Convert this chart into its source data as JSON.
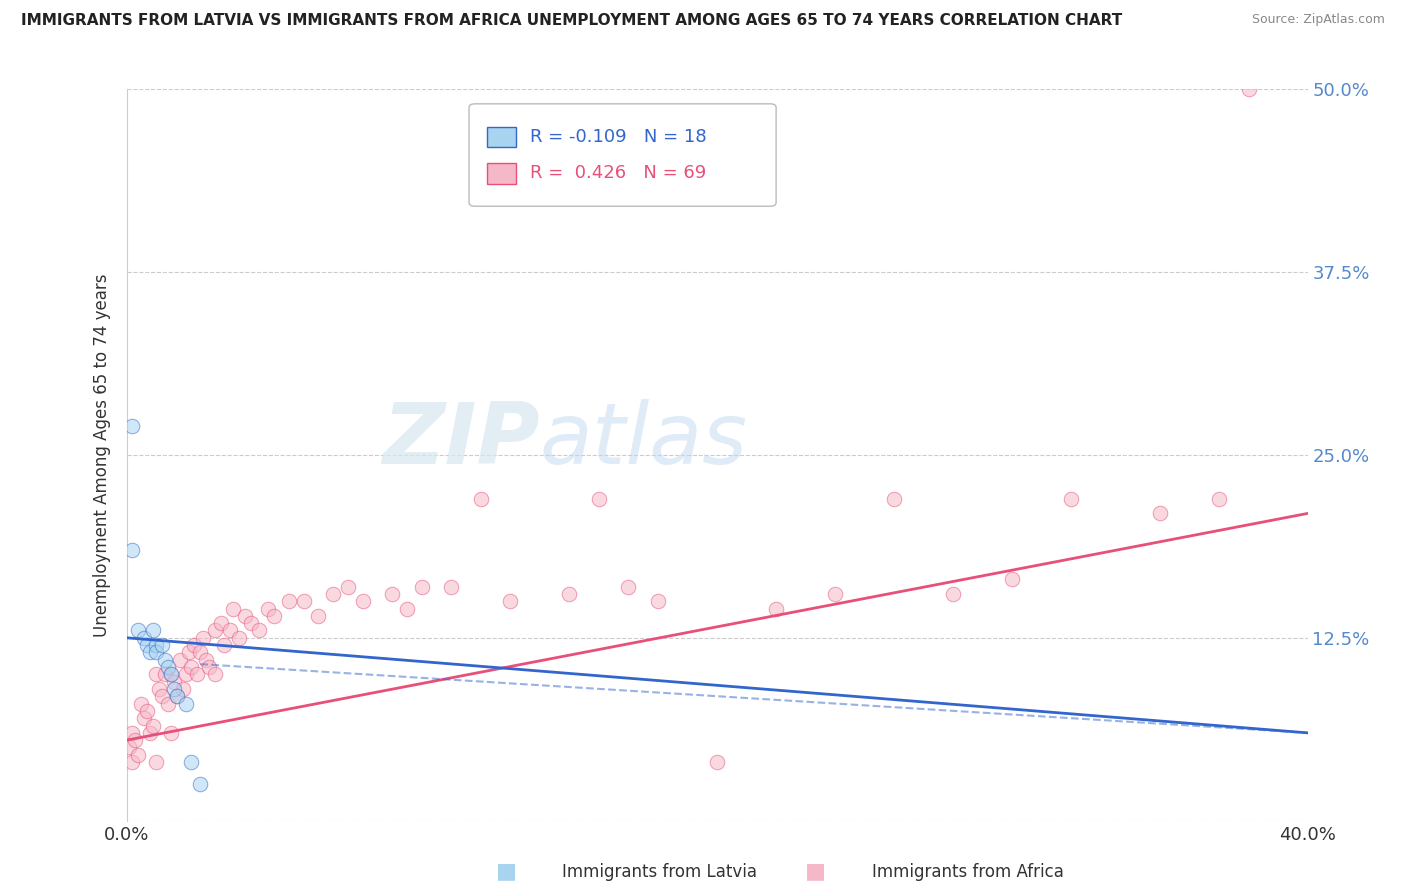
{
  "title": "IMMIGRANTS FROM LATVIA VS IMMIGRANTS FROM AFRICA UNEMPLOYMENT AMONG AGES 65 TO 74 YEARS CORRELATION CHART",
  "source": "Source: ZipAtlas.com",
  "ylabel": "Unemployment Among Ages 65 to 74 years",
  "legend_latvia": "Immigrants from Latvia",
  "legend_africa": "Immigrants from Africa",
  "R_latvia": -0.109,
  "N_latvia": 18,
  "R_africa": 0.426,
  "N_africa": 69,
  "xlim": [
    0.0,
    0.4
  ],
  "ylim": [
    0.0,
    0.5
  ],
  "yticks": [
    0.0,
    0.125,
    0.25,
    0.375,
    0.5
  ],
  "ytick_labels": [
    "",
    "12.5%",
    "25.0%",
    "37.5%",
    "50.0%"
  ],
  "color_latvia": "#a8d4f0",
  "color_africa": "#f5b8c8",
  "line_color_latvia": "#3366cc",
  "line_color_africa": "#e8507a",
  "background_color": "#ffffff",
  "latvia_x": [
    0.002,
    0.002,
    0.004,
    0.006,
    0.007,
    0.008,
    0.009,
    0.01,
    0.01,
    0.012,
    0.013,
    0.014,
    0.015,
    0.016,
    0.017,
    0.02,
    0.022,
    0.025
  ],
  "latvia_y": [
    0.27,
    0.185,
    0.13,
    0.125,
    0.12,
    0.115,
    0.13,
    0.12,
    0.115,
    0.12,
    0.11,
    0.105,
    0.1,
    0.09,
    0.085,
    0.08,
    0.04,
    0.025
  ],
  "africa_x": [
    0.001,
    0.002,
    0.002,
    0.003,
    0.004,
    0.005,
    0.006,
    0.007,
    0.008,
    0.009,
    0.01,
    0.01,
    0.011,
    0.012,
    0.013,
    0.014,
    0.015,
    0.015,
    0.016,
    0.017,
    0.018,
    0.019,
    0.02,
    0.021,
    0.022,
    0.023,
    0.024,
    0.025,
    0.026,
    0.027,
    0.028,
    0.03,
    0.03,
    0.032,
    0.033,
    0.035,
    0.036,
    0.038,
    0.04,
    0.042,
    0.045,
    0.048,
    0.05,
    0.055,
    0.06,
    0.065,
    0.07,
    0.075,
    0.08,
    0.09,
    0.095,
    0.1,
    0.11,
    0.12,
    0.13,
    0.15,
    0.16,
    0.17,
    0.18,
    0.2,
    0.22,
    0.24,
    0.26,
    0.28,
    0.3,
    0.32,
    0.35,
    0.37,
    0.38
  ],
  "africa_y": [
    0.05,
    0.06,
    0.04,
    0.055,
    0.045,
    0.08,
    0.07,
    0.075,
    0.06,
    0.065,
    0.1,
    0.04,
    0.09,
    0.085,
    0.1,
    0.08,
    0.1,
    0.06,
    0.095,
    0.085,
    0.11,
    0.09,
    0.1,
    0.115,
    0.105,
    0.12,
    0.1,
    0.115,
    0.125,
    0.11,
    0.105,
    0.13,
    0.1,
    0.135,
    0.12,
    0.13,
    0.145,
    0.125,
    0.14,
    0.135,
    0.13,
    0.145,
    0.14,
    0.15,
    0.15,
    0.14,
    0.155,
    0.16,
    0.15,
    0.155,
    0.145,
    0.16,
    0.16,
    0.22,
    0.15,
    0.155,
    0.22,
    0.16,
    0.15,
    0.04,
    0.145,
    0.155,
    0.22,
    0.155,
    0.165,
    0.22,
    0.21,
    0.22,
    0.5
  ],
  "africa_line_x0": 0.0,
  "africa_line_y0": 0.055,
  "africa_line_x1": 0.4,
  "africa_line_y1": 0.21,
  "latvia_line_x0": 0.0,
  "latvia_line_y0": 0.125,
  "latvia_line_x1": 0.4,
  "latvia_line_y1": 0.06
}
